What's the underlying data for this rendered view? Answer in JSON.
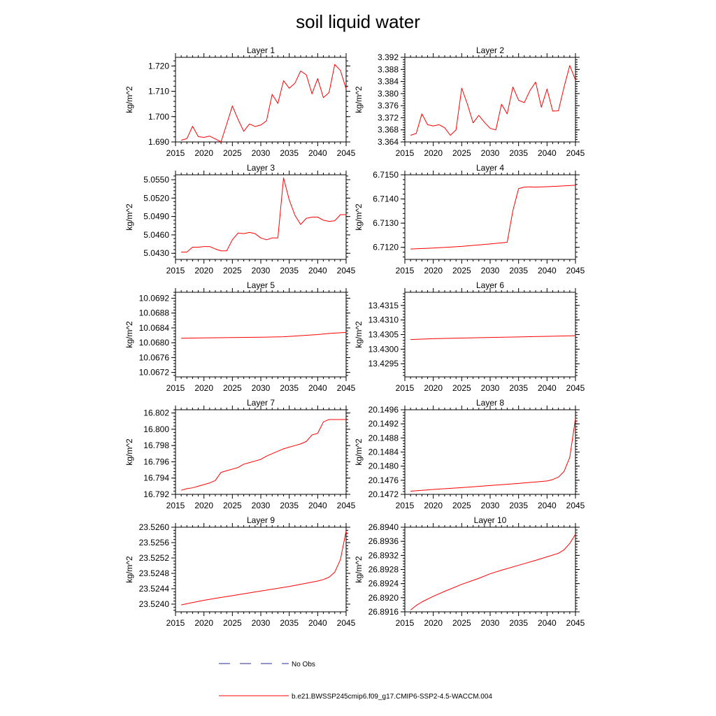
{
  "figure": {
    "title": "soil liquid water"
  },
  "legend": {
    "entries": [
      {
        "label": "No Obs",
        "color": "#2a2a9a",
        "style": "dashed"
      },
      {
        "label": "b.e21.BWSSP245cmip6.f09_g17.CMIP6-SSP2-4.5-WACCM.004",
        "color": "#ff0000",
        "style": "solid"
      }
    ]
  },
  "chart_data": [
    {
      "type": "line",
      "title": "Layer 1",
      "xlabel": "",
      "ylabel": "kg/m^2",
      "xlim": [
        2015,
        2045
      ],
      "ylim": [
        1.69,
        1.7234
      ],
      "xticks": [
        2015,
        2020,
        2025,
        2030,
        2035,
        2040,
        2045
      ],
      "xtick_labels": [
        "2015",
        "2020",
        "2025",
        "2030",
        "2035",
        "2040",
        "2045"
      ],
      "yticks": [
        1.69,
        1.7,
        1.71,
        1.72
      ],
      "ytick_labels": [
        "1.690",
        "1.700",
        "1.710",
        "1.720"
      ],
      "series": [
        {
          "color": "#ff0000",
          "x": [
            2016,
            2017,
            2018,
            2019,
            2020,
            2021,
            2022,
            2023,
            2024,
            2025,
            2026,
            2027,
            2028,
            2029,
            2030,
            2031,
            2032,
            2033,
            2034,
            2035,
            2036,
            2037,
            2038,
            2039,
            2040,
            2041,
            2042,
            2043,
            2044,
            2045
          ],
          "y": [
            1.6907,
            1.6913,
            1.6962,
            1.6921,
            1.6918,
            1.6923,
            1.6912,
            1.69,
            1.697,
            1.7042,
            1.6989,
            1.6942,
            1.6971,
            1.6961,
            1.6967,
            1.6983,
            1.7088,
            1.7052,
            1.7142,
            1.7112,
            1.7132,
            1.718,
            1.7165,
            1.709,
            1.715,
            1.7075,
            1.7095,
            1.7206,
            1.7182,
            1.711
          ]
        }
      ]
    },
    {
      "type": "line",
      "title": "Layer 2",
      "xlabel": "",
      "ylabel": "kg/m^2",
      "xlim": [
        2015,
        2045
      ],
      "ylim": [
        3.364,
        3.392
      ],
      "xticks": [
        2015,
        2020,
        2025,
        2030,
        2035,
        2040,
        2045
      ],
      "xtick_labels": [
        "2015",
        "2020",
        "2025",
        "2030",
        "2035",
        "2040",
        "2045"
      ],
      "yticks": [
        3.364,
        3.368,
        3.372,
        3.376,
        3.38,
        3.384,
        3.388,
        3.392
      ],
      "ytick_labels": [
        "3.364",
        "3.368",
        "3.372",
        "3.376",
        "3.380",
        "3.384",
        "3.388",
        "3.392"
      ],
      "series": [
        {
          "color": "#ff0000",
          "x": [
            2016,
            2017,
            2018,
            2019,
            2020,
            2021,
            2022,
            2023,
            2024,
            2025,
            2026,
            2027,
            2028,
            2029,
            2030,
            2031,
            2032,
            2033,
            2034,
            2035,
            2036,
            2037,
            2038,
            2039,
            2040,
            2041,
            2042,
            2043,
            2044,
            2045
          ],
          "y": [
            3.3662,
            3.3668,
            3.3733,
            3.3697,
            3.3693,
            3.3697,
            3.3687,
            3.3662,
            3.368,
            3.3818,
            3.3765,
            3.3703,
            3.3728,
            3.3705,
            3.3685,
            3.368,
            3.3765,
            3.3733,
            3.3822,
            3.3778,
            3.377,
            3.381,
            3.3838,
            3.3755,
            3.3815,
            3.3742,
            3.3743,
            3.3822,
            3.3893,
            3.3845
          ]
        }
      ]
    },
    {
      "type": "line",
      "title": "Layer 3",
      "xlabel": "",
      "ylabel": "kg/m^2",
      "xlim": [
        2015,
        2045
      ],
      "ylim": [
        5.042,
        5.0558
      ],
      "xticks": [
        2015,
        2020,
        2025,
        2030,
        2035,
        2040,
        2045
      ],
      "xtick_labels": [
        "2015",
        "2020",
        "2025",
        "2030",
        "2035",
        "2040",
        "2045"
      ],
      "yticks": [
        5.043,
        5.046,
        5.049,
        5.052,
        5.055
      ],
      "ytick_labels": [
        "5.0430",
        "5.0460",
        "5.0490",
        "5.0520",
        "5.0550"
      ],
      "series": [
        {
          "color": "#ff0000",
          "x": [
            2016,
            2017,
            2018,
            2019,
            2020,
            2021,
            2022,
            2023,
            2024,
            2025,
            2026,
            2027,
            2028,
            2029,
            2030,
            2031,
            2032,
            2033,
            2034,
            2035,
            2036,
            2037,
            2038,
            2039,
            2040,
            2041,
            2042,
            2043,
            2044,
            2045
          ],
          "y": [
            5.0432,
            5.0432,
            5.044,
            5.044,
            5.0441,
            5.0441,
            5.0437,
            5.0434,
            5.0434,
            5.0452,
            5.0463,
            5.0462,
            5.0464,
            5.0462,
            5.0455,
            5.0452,
            5.0455,
            5.0455,
            5.0553,
            5.0517,
            5.0492,
            5.0477,
            5.0487,
            5.0489,
            5.0489,
            5.0484,
            5.0482,
            5.0483,
            5.0493,
            5.0493
          ]
        }
      ]
    },
    {
      "type": "line",
      "title": "Layer 4",
      "xlabel": "",
      "ylabel": "kg/m^2",
      "xlim": [
        2015,
        2045
      ],
      "ylim": [
        6.7115,
        6.715
      ],
      "xticks": [
        2015,
        2020,
        2025,
        2030,
        2035,
        2040,
        2045
      ],
      "xtick_labels": [
        "2015",
        "2020",
        "2025",
        "2030",
        "2035",
        "2040",
        "2045"
      ],
      "yticks": [
        6.712,
        6.713,
        6.714,
        6.715
      ],
      "ytick_labels": [
        "6.7120",
        "6.7130",
        "6.7140",
        "6.7150"
      ],
      "series": [
        {
          "color": "#ff0000",
          "x": [
            2016,
            2020,
            2025,
            2030,
            2033,
            2034,
            2035,
            2036,
            2037,
            2038,
            2040,
            2042,
            2045
          ],
          "y": [
            6.71193,
            6.71197,
            6.71204,
            6.71214,
            6.71221,
            6.71352,
            6.71443,
            6.71449,
            6.7145,
            6.71449,
            6.71451,
            6.71453,
            6.71457
          ]
        }
      ]
    },
    {
      "type": "line",
      "title": "Layer 5",
      "xlabel": "",
      "ylabel": "kg/m^2",
      "xlim": [
        2015,
        2045
      ],
      "ylim": [
        10.06708,
        10.06936
      ],
      "xticks": [
        2015,
        2020,
        2025,
        2030,
        2035,
        2040,
        2045
      ],
      "xtick_labels": [
        "2015",
        "2020",
        "2025",
        "2030",
        "2035",
        "2040",
        "2045"
      ],
      "yticks": [
        10.0672,
        10.0676,
        10.068,
        10.0684,
        10.0688,
        10.0692
      ],
      "ytick_labels": [
        "10.0672",
        "10.0676",
        "10.0680",
        "10.0684",
        "10.0688",
        "10.0692"
      ],
      "series": [
        {
          "color": "#ff0000",
          "x": [
            2016,
            2020,
            2025,
            2030,
            2034,
            2036,
            2038,
            2040,
            2042,
            2045
          ],
          "y": [
            10.06812,
            10.06813,
            10.06814,
            10.06815,
            10.06816,
            10.06818,
            10.0682,
            10.06822,
            10.06825,
            10.06828
          ]
        }
      ]
    },
    {
      "type": "line",
      "title": "Layer 6",
      "xlabel": "",
      "ylabel": "kg/m^2",
      "xlim": [
        2015,
        2045
      ],
      "ylim": [
        13.42905,
        13.43195
      ],
      "xticks": [
        2015,
        2020,
        2025,
        2030,
        2035,
        2040,
        2045
      ],
      "xtick_labels": [
        "2015",
        "2020",
        "2025",
        "2030",
        "2035",
        "2040",
        "2045"
      ],
      "yticks": [
        13.4295,
        13.43,
        13.4305,
        13.431,
        13.4315
      ],
      "ytick_labels": [
        "13.4295",
        "13.4300",
        "13.4305",
        "13.4310",
        "13.4315"
      ],
      "series": [
        {
          "color": "#ff0000",
          "x": [
            2016,
            2020,
            2025,
            2030,
            2035,
            2040,
            2045
          ],
          "y": [
            13.43033,
            13.43036,
            13.43038,
            13.4304,
            13.43042,
            13.43044,
            13.43046
          ]
        }
      ]
    },
    {
      "type": "line",
      "title": "Layer 7",
      "xlabel": "",
      "ylabel": "kg/m^2",
      "xlim": [
        2015,
        2045
      ],
      "ylim": [
        16.792,
        16.8024
      ],
      "xticks": [
        2015,
        2020,
        2025,
        2030,
        2035,
        2040,
        2045
      ],
      "xtick_labels": [
        "2015",
        "2020",
        "2025",
        "2030",
        "2035",
        "2040",
        "2045"
      ],
      "yticks": [
        16.792,
        16.794,
        16.796,
        16.798,
        16.8,
        16.802
      ],
      "ytick_labels": [
        "16.792",
        "16.794",
        "16.796",
        "16.798",
        "16.800",
        "16.802"
      ],
      "series": [
        {
          "color": "#ff0000",
          "x": [
            2016,
            2017,
            2018,
            2019,
            2020,
            2021,
            2022,
            2023,
            2024,
            2025,
            2026,
            2027,
            2028,
            2029,
            2030,
            2031,
            2032,
            2033,
            2034,
            2035,
            2036,
            2037,
            2038,
            2039,
            2040,
            2041,
            2042,
            2043,
            2044,
            2045
          ],
          "y": [
            16.7925,
            16.7927,
            16.7928,
            16.793,
            16.7932,
            16.7934,
            16.7937,
            16.7947,
            16.7949,
            16.7951,
            16.7953,
            16.7957,
            16.7959,
            16.7961,
            16.7963,
            16.7967,
            16.797,
            16.7973,
            16.7976,
            16.7978,
            16.798,
            16.7982,
            16.7985,
            16.7993,
            16.7995,
            16.8009,
            16.8012,
            16.8012,
            16.8012,
            16.8012
          ]
        }
      ]
    },
    {
      "type": "line",
      "title": "Layer 8",
      "xlabel": "",
      "ylabel": "kg/m^2",
      "xlim": [
        2015,
        2045
      ],
      "ylim": [
        20.1472,
        20.1496
      ],
      "xticks": [
        2015,
        2020,
        2025,
        2030,
        2035,
        2040,
        2045
      ],
      "xtick_labels": [
        "2015",
        "2020",
        "2025",
        "2030",
        "2035",
        "2040",
        "2045"
      ],
      "yticks": [
        20.1472,
        20.1476,
        20.148,
        20.1484,
        20.1488,
        20.1492,
        20.1496
      ],
      "ytick_labels": [
        "20.1472",
        "20.1476",
        "20.1480",
        "20.1484",
        "20.1488",
        "20.1492",
        "20.1496"
      ],
      "series": [
        {
          "color": "#ff0000",
          "x": [
            2016,
            2020,
            2025,
            2030,
            2035,
            2040,
            2041,
            2042,
            2043,
            2044,
            2045
          ],
          "y": [
            20.14729,
            20.14734,
            20.14739,
            20.14745,
            20.14751,
            20.14758,
            20.14762,
            20.14769,
            20.14785,
            20.14825,
            20.14935
          ]
        }
      ]
    },
    {
      "type": "line",
      "title": "Layer 9",
      "xlabel": "",
      "ylabel": "kg/m^2",
      "xlim": [
        2015,
        2045
      ],
      "ylim": [
        23.5238,
        23.526
      ],
      "xticks": [
        2015,
        2020,
        2025,
        2030,
        2035,
        2040,
        2045
      ],
      "xtick_labels": [
        "2015",
        "2020",
        "2025",
        "2030",
        "2035",
        "2040",
        "2045"
      ],
      "yticks": [
        23.524,
        23.5244,
        23.5248,
        23.5252,
        23.5256,
        23.526
      ],
      "ytick_labels": [
        "23.5240",
        "23.5244",
        "23.5248",
        "23.5252",
        "23.5256",
        "23.5260"
      ],
      "series": [
        {
          "color": "#ff0000",
          "x": [
            2016,
            2018,
            2020,
            2022,
            2025,
            2030,
            2035,
            2040,
            2041,
            2042,
            2043,
            2044,
            2045
          ],
          "y": [
            23.52398,
            23.52404,
            23.5241,
            23.52415,
            23.52422,
            23.52434,
            23.52446,
            23.5246,
            23.52464,
            23.5247,
            23.52483,
            23.52516,
            23.5259
          ]
        }
      ]
    },
    {
      "type": "line",
      "title": "Layer 10",
      "xlabel": "",
      "ylabel": "kg/m^2",
      "xlim": [
        2015,
        2045
      ],
      "ylim": [
        26.8916,
        26.894
      ],
      "xticks": [
        2015,
        2020,
        2025,
        2030,
        2035,
        2040,
        2045
      ],
      "xtick_labels": [
        "2015",
        "2020",
        "2025",
        "2030",
        "2035",
        "2040",
        "2045"
      ],
      "yticks": [
        26.8916,
        26.892,
        26.8924,
        26.8928,
        26.8932,
        26.8936,
        26.894
      ],
      "ytick_labels": [
        "26.8916",
        "26.8920",
        "26.8924",
        "26.8928",
        "26.8932",
        "26.8936",
        "26.8940"
      ],
      "series": [
        {
          "color": "#ff0000",
          "x": [
            2016,
            2017,
            2018,
            2020,
            2022,
            2025,
            2028,
            2030,
            2032,
            2035,
            2038,
            2040,
            2042,
            2043,
            2044,
            2045
          ],
          "y": [
            26.89165,
            26.89178,
            26.89188,
            26.89204,
            26.89218,
            26.89238,
            26.89255,
            26.89268,
            26.89278,
            26.89292,
            26.89306,
            26.89316,
            26.89326,
            26.89336,
            26.89354,
            26.8938
          ]
        }
      ]
    }
  ]
}
